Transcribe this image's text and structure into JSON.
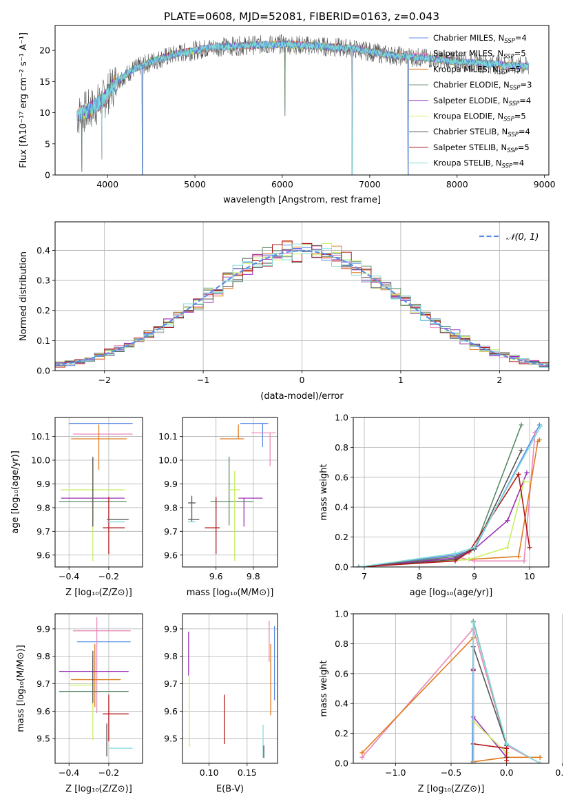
{
  "figure": {
    "title": "PLATE=0608, MJD=52081, FIBERID=0163, z=0.043"
  },
  "colors": {
    "Chabrier MILES": "#5b8de8",
    "Salpeter MILES": "#e889b9",
    "Kroupa MILES": "#e07b1f",
    "Chabrier ELODIE": "#5a8a66",
    "Salpeter ELODIE": "#9b30b5",
    "Kroupa ELODIE": "#c8f060",
    "Chabrier STELIB": "#555555",
    "Salpeter STELIB": "#b01818",
    "Kroupa STELIB": "#80dcd8",
    "gaussian": "#5b8de8",
    "grid": "#b0b0b0"
  },
  "chart_data": [
    {
      "id": "spectrum",
      "type": "line",
      "xlabel": "wavelength [Angstrom, rest frame]",
      "ylabel": "Flux [fλ10⁻¹⁷ erg cm⁻² s⁻¹ A⁻¹]",
      "xlim": [
        3400,
        9050
      ],
      "ylim": [
        0,
        24
      ],
      "xticks": [
        "4000",
        "5000",
        "6000",
        "7000",
        "8000",
        "9000"
      ],
      "yticks": [
        "0",
        "5",
        "10",
        "15",
        "20"
      ],
      "grid": false,
      "legend_position": "right",
      "legend": [
        {
          "label": "Chabrier MILES",
          "n": "4"
        },
        {
          "label": "Salpeter MILES",
          "n": "5"
        },
        {
          "label": "Kroupa MILES",
          "n": "5"
        },
        {
          "label": "Chabrier ELODIE",
          "n": "3"
        },
        {
          "label": "Salpeter ELODIE",
          "n": "4"
        },
        {
          "label": "Kroupa ELODIE",
          "n": "5"
        },
        {
          "label": "Chabrier STELIB",
          "n": "4"
        },
        {
          "label": "Salpeter STELIB",
          "n": "5"
        },
        {
          "label": "Kroupa STELIB",
          "n": "4"
        }
      ],
      "x_range": [
        3650,
        8820
      ],
      "continuum": {
        "x": [
          3650,
          3800,
          3950,
          4100,
          4300,
          4500,
          4800,
          5200,
          5600,
          6000,
          6400,
          6800,
          7200,
          7600,
          8000,
          8400,
          8820
        ],
        "y": [
          9.5,
          10.5,
          12.0,
          15.0,
          17.0,
          18.2,
          19.5,
          20.5,
          20.8,
          21.0,
          20.7,
          20.3,
          19.3,
          18.8,
          18.2,
          17.8,
          17.4
        ]
      },
      "line_dips": [
        {
          "x": 3705,
          "y": 0.5
        },
        {
          "x": 3935,
          "y": 2.5
        },
        {
          "x": 4400,
          "y": 0.0
        },
        {
          "x": 6030,
          "y": 9.5
        },
        {
          "x": 6800,
          "y": 0.0
        },
        {
          "x": 7440,
          "y": 0.0
        }
      ]
    },
    {
      "id": "residuals",
      "type": "histogram",
      "xlabel": "(data-model)/error",
      "ylabel": "Normed distribution",
      "xlim": [
        -2.5,
        2.5
      ],
      "ylim": [
        0,
        0.495
      ],
      "xticks": [
        "−2",
        "−1",
        "0",
        "1",
        "2"
      ],
      "yticks": [
        "0.0",
        "0.1",
        "0.2",
        "0.3",
        "0.4"
      ],
      "grid": true,
      "legend": "𝒩(0, 1)",
      "legend_position": "top-right",
      "bin_width": 0.1,
      "model": "normal(0, 1)"
    },
    {
      "id": "age-vs-Z",
      "type": "errorbar",
      "xlabel": "Z [log₁₀(Z/Z⊙)]",
      "ylabel": "age  [log₁₀(age/yr)]",
      "xlim": [
        -0.47,
        -0.03
      ],
      "ylim": [
        9.55,
        10.18
      ],
      "xticks": [
        "−0.4",
        "−0.2"
      ],
      "yticks": [
        "9.6",
        "9.7",
        "9.8",
        "9.9",
        "10.0",
        "10.1"
      ],
      "grid": true,
      "points": [
        {
          "series": "Chabrier MILES",
          "x": -0.24,
          "xerr": [
            0.16,
            0.16
          ],
          "y": 10.155,
          "yerr": [
            0,
            0
          ]
        },
        {
          "series": "Salpeter MILES",
          "x": -0.23,
          "xerr": [
            0.15,
            0.15
          ],
          "y": 10.11,
          "yerr": [
            0,
            0
          ]
        },
        {
          "series": "Kroupa MILES",
          "x": -0.25,
          "xerr": [
            0.14,
            0.14
          ],
          "y": 10.09,
          "yerr": [
            0.13,
            0.06
          ]
        },
        {
          "series": "Chabrier ELODIE",
          "x": -0.28,
          "xerr": [
            0.17,
            0.17
          ],
          "y": 9.825,
          "yerr": [
            0.1,
            0.19
          ]
        },
        {
          "series": "Salpeter ELODIE",
          "x": -0.28,
          "xerr": [
            0.16,
            0.16
          ],
          "y": 9.84,
          "yerr": [
            0.12,
            0
          ]
        },
        {
          "series": "Kroupa ELODIE",
          "x": -0.28,
          "xerr": [
            0.16,
            0.16
          ],
          "y": 9.875,
          "yerr": [
            0.3,
            0.1
          ]
        },
        {
          "series": "Chabrier STELIB",
          "x": -0.28,
          "xerr": [
            0,
            0
          ],
          "y": 9.82,
          "yerr": [
            0.1,
            0.19
          ]
        },
        {
          "series": "Salpeter STELIB",
          "x": -0.2,
          "xerr": [
            0.03,
            0.08
          ],
          "y": 9.715,
          "yerr": [
            0.11,
            0.13
          ]
        },
        {
          "series": "Kroupa STELIB",
          "x": -0.17,
          "xerr": [
            0.04,
            0.05
          ],
          "y": 9.74,
          "yerr": [
            0,
            0
          ]
        },
        {
          "series": "Chabrier STELIB",
          "x": -0.16,
          "xerr": [
            0.05,
            0.06
          ],
          "y": 9.75,
          "yerr": [
            0,
            0
          ]
        }
      ]
    },
    {
      "id": "age-vs-mass",
      "type": "errorbar",
      "xlabel": "mass [log₁₀(M/M⊙)]",
      "ylabel": "",
      "xlim": [
        9.42,
        9.93
      ],
      "ylim": [
        9.55,
        10.18
      ],
      "xticks": [
        "9.6",
        "9.8"
      ],
      "yticks": [
        "9.6",
        "9.7",
        "9.8",
        "9.9",
        "10.0",
        "10.1"
      ],
      "grid": true,
      "points": [
        {
          "series": "Chabrier MILES",
          "x": 9.85,
          "xerr": [
            0.12,
            0.03
          ],
          "y": 10.155,
          "yerr": [
            0.1,
            0
          ]
        },
        {
          "series": "Salpeter MILES",
          "x": 9.89,
          "xerr": [
            0.1,
            0.03
          ],
          "y": 10.115,
          "yerr": [
            0.14,
            0
          ]
        },
        {
          "series": "Kroupa MILES",
          "x": 9.72,
          "xerr": [
            0.1,
            0.03
          ],
          "y": 10.09,
          "yerr": [
            0,
            0.06
          ]
        },
        {
          "series": "Chabrier ELODIE",
          "x": 9.67,
          "xerr": [
            0.1,
            0.13
          ],
          "y": 9.825,
          "yerr": [
            0.1,
            0.19
          ]
        },
        {
          "series": "Salpeter ELODIE",
          "x": 9.75,
          "xerr": [
            0.03,
            0.1
          ],
          "y": 9.84,
          "yerr": [
            0.12,
            0
          ]
        },
        {
          "series": "Kroupa ELODIE",
          "x": 9.7,
          "xerr": [
            0.03,
            0.03
          ],
          "y": 9.875,
          "yerr": [
            0.3,
            0.08
          ]
        },
        {
          "series": "Chabrier STELIB",
          "x": 9.47,
          "xerr": [
            0.02,
            0.02
          ],
          "y": 9.82,
          "yerr": [
            0.08,
            0.03
          ]
        },
        {
          "series": "Salpeter STELIB",
          "x": 9.6,
          "xerr": [
            0.06,
            0.02
          ],
          "y": 9.715,
          "yerr": [
            0.11,
            0.13
          ]
        },
        {
          "series": "Kroupa STELIB",
          "x": 9.47,
          "xerr": [
            0.02,
            0.02
          ],
          "y": 9.74,
          "yerr": [
            0,
            0
          ]
        },
        {
          "series": "Chabrier STELIB",
          "x": 9.48,
          "xerr": [
            0.03,
            0.03
          ],
          "y": 9.75,
          "yerr": [
            0,
            0
          ]
        }
      ]
    },
    {
      "id": "weight-vs-age",
      "type": "line",
      "xlabel": "age  [log₁₀(age/yr)]",
      "ylabel": "mass weight",
      "xlim": [
        6.8,
        10.35
      ],
      "ylim": [
        0,
        1.0
      ],
      "xticks": [
        "7",
        "8",
        "9",
        "10"
      ],
      "yticks": [
        "0.0",
        "0.2",
        "0.4",
        "0.6",
        "0.8",
        "1.0"
      ],
      "grid": true,
      "series": [
        {
          "name": "Chabrier MILES",
          "x": [
            6.9,
            8.65,
            9.0,
            10.18
          ],
          "y": [
            0.0,
            0.08,
            0.12,
            0.95
          ]
        },
        {
          "name": "Salpeter MILES",
          "x": [
            6.9,
            8.65,
            9.0,
            9.9,
            10.1
          ],
          "y": [
            0.0,
            0.07,
            0.04,
            0.04,
            0.9
          ]
        },
        {
          "name": "Kroupa MILES",
          "x": [
            6.9,
            8.9,
            9.8,
            10.15,
            10.18
          ],
          "y": [
            0.0,
            0.05,
            0.07,
            0.84,
            0.85
          ]
        },
        {
          "name": "Chabrier ELODIE",
          "x": [
            6.9,
            8.65,
            9.0,
            9.85
          ],
          "y": [
            0.0,
            0.07,
            0.12,
            0.95
          ]
        },
        {
          "name": "Salpeter ELODIE",
          "x": [
            6.9,
            8.65,
            9.0,
            9.6,
            9.95
          ],
          "y": [
            0.0,
            0.06,
            0.12,
            0.31,
            0.63
          ]
        },
        {
          "name": "Kroupa ELODIE",
          "x": [
            6.9,
            8.9,
            9.6,
            9.9,
            10.0
          ],
          "y": [
            0.0,
            0.05,
            0.13,
            0.57,
            0.57
          ]
        },
        {
          "name": "Chabrier STELIB",
          "x": [
            6.9,
            8.65,
            9.0,
            9.85
          ],
          "y": [
            0.0,
            0.05,
            0.12,
            0.78
          ]
        },
        {
          "name": "Salpeter STELIB",
          "x": [
            6.9,
            8.65,
            8.9,
            9.8,
            10.0
          ],
          "y": [
            0.0,
            0.04,
            0.1,
            0.62,
            0.13
          ]
        },
        {
          "name": "Kroupa STELIB",
          "x": [
            6.9,
            8.65,
            9.0,
            10.2
          ],
          "y": [
            0.0,
            0.09,
            0.13,
            0.94
          ]
        }
      ]
    },
    {
      "id": "mass-vs-Z",
      "type": "errorbar",
      "xlabel": "Z [log₁₀(Z/Z⊙)]",
      "ylabel": "mass [log₁₀(M/M⊙)]",
      "xlim": [
        -0.47,
        -0.03
      ],
      "ylim": [
        9.41,
        9.955
      ],
      "xticks": [
        "−0.4",
        "−0.2"
      ],
      "yticks": [
        "9.5",
        "9.6",
        "9.7",
        "9.8",
        "9.9"
      ],
      "grid": true,
      "points": [
        {
          "series": "Chabrier MILES",
          "x": -0.24,
          "xerr": [
            0.12,
            0.15
          ],
          "y": 9.853,
          "yerr": [
            0,
            0
          ]
        },
        {
          "series": "Salpeter MILES",
          "x": -0.26,
          "xerr": [
            0.12,
            0.17
          ],
          "y": 9.893,
          "yerr": [
            0.3,
            0.05
          ]
        },
        {
          "series": "Kroupa MILES",
          "x": -0.27,
          "xerr": [
            0.12,
            0.13
          ],
          "y": 9.715,
          "yerr": [
            0.1,
            0.13
          ]
        },
        {
          "series": "Chabrier ELODIE",
          "x": -0.28,
          "xerr": [
            0.17,
            0.18
          ],
          "y": 9.672,
          "yerr": [
            0.05,
            0.12
          ]
        },
        {
          "series": "Salpeter ELODIE",
          "x": -0.28,
          "xerr": [
            0.17,
            0.18
          ],
          "y": 9.745,
          "yerr": [
            0.1,
            0.05
          ]
        },
        {
          "series": "Kroupa ELODIE",
          "x": -0.28,
          "xerr": [
            0.12,
            0.02
          ],
          "y": 9.695,
          "yerr": [
            0.2,
            0.01
          ]
        },
        {
          "series": "Chabrier STELIB",
          "x": -0.28,
          "xerr": [
            0,
            0
          ],
          "y": 9.7,
          "yerr": [
            0.07,
            0.12
          ]
        },
        {
          "series": "Salpeter STELIB",
          "x": -0.2,
          "xerr": [
            0.03,
            0.1
          ],
          "y": 9.59,
          "yerr": [
            0.1,
            0.07
          ]
        },
        {
          "series": "Kroupa STELIB",
          "x": -0.16,
          "xerr": [
            0.04,
            0.08
          ],
          "y": 9.465,
          "yerr": [
            0,
            0
          ]
        },
        {
          "series": "Chabrier STELIB",
          "x": -0.21,
          "xerr": [
            0,
            0
          ],
          "y": 9.495,
          "yerr": [
            0.06,
            0.06
          ]
        }
      ]
    },
    {
      "id": "mass-vs-ebv",
      "type": "errorbar",
      "xlabel": "E(B-V)",
      "ylabel": "",
      "xlim": [
        0.065,
        0.19
      ],
      "ylim": [
        9.41,
        9.955
      ],
      "xticks": [
        "0.10",
        "0.15"
      ],
      "yticks": [
        "9.5",
        "9.6",
        "9.7",
        "9.8",
        "9.9"
      ],
      "grid": true,
      "points": [
        {
          "series": "Chabrier MILES",
          "x": 0.186,
          "xerr": [
            0,
            0
          ],
          "y": 9.78,
          "yerr": [
            0.14,
            0.13
          ]
        },
        {
          "series": "Salpeter MILES",
          "x": 0.179,
          "xerr": [
            0,
            0
          ],
          "y": 9.86,
          "yerr": [
            0.08,
            0.07
          ]
        },
        {
          "series": "Kroupa MILES",
          "x": 0.181,
          "xerr": [
            0,
            0
          ],
          "y": 9.715,
          "yerr": [
            0.13,
            0.13
          ]
        },
        {
          "series": "Salpeter ELODIE",
          "x": 0.073,
          "xerr": [
            0,
            0
          ],
          "y": 9.81,
          "yerr": [
            0.08,
            0.08
          ]
        },
        {
          "series": "Kroupa ELODIE",
          "x": 0.074,
          "xerr": [
            0,
            0
          ],
          "y": 9.6,
          "yerr": [
            0.13,
            0.13
          ]
        },
        {
          "series": "Salpeter STELIB",
          "x": 0.12,
          "xerr": [
            0,
            0
          ],
          "y": 9.57,
          "yerr": [
            0.09,
            0.09
          ]
        },
        {
          "series": "Kroupa STELIB",
          "x": 0.171,
          "xerr": [
            0,
            0
          ],
          "y": 9.49,
          "yerr": [
            0.06,
            0.06
          ]
        },
        {
          "series": "Chabrier STELIB",
          "x": 0.172,
          "xerr": [
            0,
            0
          ],
          "y": 9.475,
          "yerr": [
            0.045,
            0
          ]
        }
      ]
    },
    {
      "id": "weight-vs-Z",
      "type": "line",
      "xlabel": "Z [log₁₀(Z/Z⊙)]",
      "ylabel": "mass weight",
      "xlim": [
        -1.38,
        0.38
      ],
      "ylim": [
        0,
        1.0
      ],
      "xticks": [
        "−1.0",
        "−0.5",
        "0.0",
        "0.5"
      ],
      "yticks": [
        "0.0",
        "0.2",
        "0.4",
        "0.6",
        "0.8",
        "1.0"
      ],
      "grid": true,
      "series": [
        {
          "name": "Chabrier MILES",
          "x": [
            -0.31,
            -0.3,
            0.0,
            0.0
          ],
          "y": [
            0.0,
            0.95,
            0.12,
            0.04
          ]
        },
        {
          "name": "Salpeter MILES",
          "x": [
            -1.3,
            -0.3,
            0.0,
            0.3
          ],
          "y": [
            0.04,
            0.9,
            0.12,
            0.0
          ]
        },
        {
          "name": "Kroupa MILES",
          "x": [
            -1.3,
            -0.3,
            -0.3,
            0.0,
            0.3
          ],
          "y": [
            0.07,
            0.84,
            0.01,
            0.04,
            0.04
          ]
        },
        {
          "name": "Chabrier ELODIE",
          "x": [
            -0.3,
            -0.3,
            0.0,
            0.0
          ],
          "y": [
            0.0,
            0.95,
            0.12,
            0.04
          ]
        },
        {
          "name": "Salpeter ELODIE",
          "x": [
            -0.3,
            -0.3,
            -0.3,
            0.0
          ],
          "y": [
            0.0,
            0.63,
            0.31,
            0.04
          ]
        },
        {
          "name": "Kroupa ELODIE",
          "x": [
            -0.3,
            -0.3,
            0.0,
            0.0
          ],
          "y": [
            0.0,
            0.28,
            0.07,
            0.04
          ]
        },
        {
          "name": "Chabrier STELIB",
          "x": [
            -0.3,
            -0.3,
            0.0,
            0.0
          ],
          "y": [
            0.0,
            0.78,
            0.12,
            0.04
          ]
        },
        {
          "name": "Salpeter STELIB",
          "x": [
            -0.3,
            -0.3,
            -0.3,
            0.0,
            0.0
          ],
          "y": [
            0.0,
            0.62,
            0.13,
            0.1,
            0.02
          ]
        },
        {
          "name": "Kroupa STELIB",
          "x": [
            -0.3,
            -0.3,
            0.0,
            0.3
          ],
          "y": [
            0.0,
            0.94,
            0.13,
            0.0
          ]
        }
      ]
    }
  ]
}
